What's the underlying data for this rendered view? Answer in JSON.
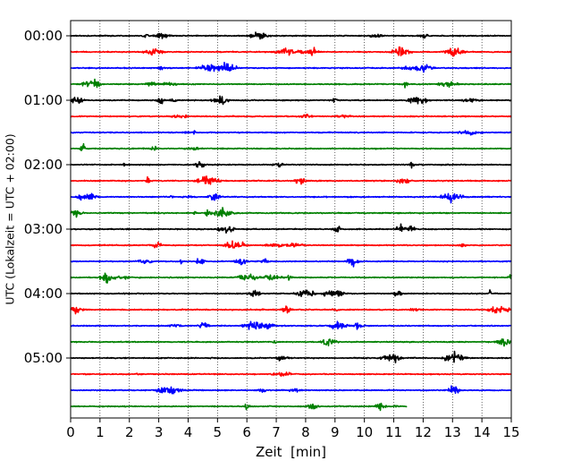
{
  "chart_data": {
    "type": "line",
    "title": "",
    "xlabel": "Zeit  [min]",
    "ylabel": "UTC (Lokalzeit = UTC + 02:00)",
    "xlim": [
      0,
      15
    ],
    "x_ticks": [
      0,
      1,
      2,
      3,
      4,
      5,
      6,
      7,
      8,
      9,
      10,
      11,
      12,
      13,
      14,
      15
    ],
    "x_tick_labels": [
      "0",
      "1",
      "2",
      "3",
      "4",
      "5",
      "6",
      "7",
      "8",
      "9",
      "10",
      "11",
      "12",
      "13",
      "14",
      "15"
    ],
    "grid": "vertical dotted at each minute",
    "y_tick_labels": [
      "00:00",
      "01:00",
      "02:00",
      "03:00",
      "04:00",
      "05:00"
    ],
    "row_interval_minutes": 15,
    "colors": [
      "#000000",
      "#ff0000",
      "#0000ff",
      "#008000"
    ],
    "traces": [
      {
        "start": "00:00",
        "color": "#000000",
        "end_minute": 15
      },
      {
        "start": "00:15",
        "color": "#ff0000",
        "end_minute": 15
      },
      {
        "start": "00:30",
        "color": "#0000ff",
        "end_minute": 15
      },
      {
        "start": "00:45",
        "color": "#008000",
        "end_minute": 15
      },
      {
        "start": "01:00",
        "color": "#000000",
        "end_minute": 15
      },
      {
        "start": "01:15",
        "color": "#ff0000",
        "end_minute": 15
      },
      {
        "start": "01:30",
        "color": "#0000ff",
        "end_minute": 15
      },
      {
        "start": "01:45",
        "color": "#008000",
        "end_minute": 15
      },
      {
        "start": "02:00",
        "color": "#000000",
        "end_minute": 15
      },
      {
        "start": "02:15",
        "color": "#ff0000",
        "end_minute": 15
      },
      {
        "start": "02:30",
        "color": "#0000ff",
        "end_minute": 15
      },
      {
        "start": "02:45",
        "color": "#008000",
        "end_minute": 15
      },
      {
        "start": "03:00",
        "color": "#000000",
        "end_minute": 15
      },
      {
        "start": "03:15",
        "color": "#ff0000",
        "end_minute": 15
      },
      {
        "start": "03:30",
        "color": "#0000ff",
        "end_minute": 15
      },
      {
        "start": "03:45",
        "color": "#008000",
        "end_minute": 15
      },
      {
        "start": "04:00",
        "color": "#000000",
        "end_minute": 15
      },
      {
        "start": "04:15",
        "color": "#ff0000",
        "end_minute": 15
      },
      {
        "start": "04:30",
        "color": "#0000ff",
        "end_minute": 15
      },
      {
        "start": "04:45",
        "color": "#008000",
        "end_minute": 15
      },
      {
        "start": "05:00",
        "color": "#000000",
        "end_minute": 15
      },
      {
        "start": "05:15",
        "color": "#ff0000",
        "end_minute": 15
      },
      {
        "start": "05:30",
        "color": "#0000ff",
        "end_minute": 15
      },
      {
        "start": "05:45",
        "color": "#008000",
        "end_minute": 11.45
      }
    ]
  }
}
